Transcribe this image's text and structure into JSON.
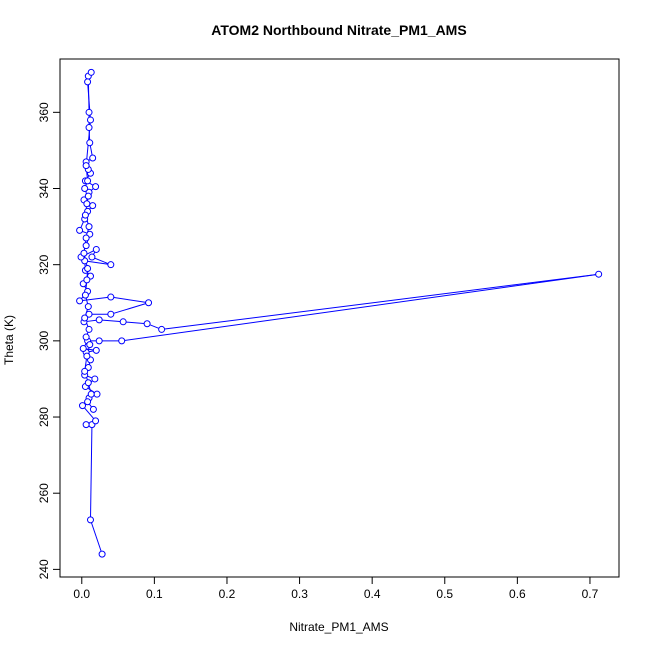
{
  "chart_data": {
    "type": "line",
    "title": "ATOM2 Northbound Nitrate_PM1_AMS",
    "xlabel": "Nitrate_PM1_AMS",
    "ylabel": "Theta (K)",
    "xlim": [
      -0.03,
      0.74
    ],
    "ylim": [
      238,
      374
    ],
    "x_ticks": [
      0.0,
      0.1,
      0.2,
      0.3,
      0.4,
      0.5,
      0.6,
      0.7
    ],
    "x_tick_labels": [
      "0.0",
      "0.1",
      "0.2",
      "0.3",
      "0.4",
      "0.5",
      "0.6",
      "0.7"
    ],
    "y_ticks": [
      240,
      260,
      280,
      300,
      320,
      340,
      360
    ],
    "y_tick_labels": [
      "240",
      "260",
      "280",
      "300",
      "320",
      "340",
      "360"
    ],
    "grid": false,
    "series": [
      {
        "color": "#0000ff",
        "marker": "open-circle",
        "points": [
          [
            0.028,
            244
          ],
          [
            0.012,
            253
          ],
          [
            0.014,
            278
          ],
          [
            0.006,
            278
          ],
          [
            0.019,
            279
          ],
          [
            0.001,
            283
          ],
          [
            0.01,
            285
          ],
          [
            0.021,
            286
          ],
          [
            0.005,
            288
          ],
          [
            0.018,
            290
          ],
          [
            0.004,
            291
          ],
          [
            0.009,
            293
          ],
          [
            0.012,
            295
          ],
          [
            0.006,
            297
          ],
          [
            0.02,
            297.5
          ],
          [
            0.002,
            298
          ],
          [
            0.008,
            300
          ],
          [
            0.024,
            300
          ],
          [
            0.055,
            300
          ],
          [
            0.712,
            317.5
          ],
          [
            0.11,
            303
          ],
          [
            0.09,
            304.5
          ],
          [
            0.057,
            305
          ],
          [
            0.024,
            305.5
          ],
          [
            0.003,
            305
          ],
          [
            0.01,
            307
          ],
          [
            0.04,
            307
          ],
          [
            0.092,
            310
          ],
          [
            0.04,
            311.5
          ],
          [
            -0.003,
            310.5
          ],
          [
            0.008,
            313
          ],
          [
            0.002,
            315
          ],
          [
            0.012,
            317
          ],
          [
            0.005,
            318.5
          ],
          [
            0.004,
            321
          ],
          [
            0.04,
            320
          ],
          [
            0.014,
            322
          ],
          [
            0.02,
            324
          ],
          [
            -0.001,
            322
          ],
          [
            0.006,
            325
          ],
          [
            0.011,
            328
          ],
          [
            -0.003,
            329
          ],
          [
            0.004,
            332
          ],
          [
            0.008,
            334
          ],
          [
            0.015,
            335.5
          ],
          [
            0.003,
            337
          ],
          [
            0.01,
            339
          ],
          [
            0.019,
            340.5
          ],
          [
            0.005,
            342
          ],
          [
            0.012,
            344
          ],
          [
            0.009,
            345
          ],
          [
            0.006,
            347
          ],
          [
            0.015,
            348
          ],
          [
            0.011,
            352
          ],
          [
            0.01,
            356
          ],
          [
            0.01,
            360
          ],
          [
            0.009,
            369.5
          ],
          [
            0.013,
            370.5
          ],
          [
            0.008,
            368
          ],
          [
            0.012,
            358
          ],
          [
            0.006,
            346
          ],
          [
            0.008,
            342
          ],
          [
            0.004,
            340
          ],
          [
            0.009,
            338
          ],
          [
            0.007,
            336
          ],
          [
            0.005,
            333
          ],
          [
            0.01,
            330
          ],
          [
            0.006,
            327
          ],
          [
            0.003,
            323
          ],
          [
            0.008,
            319
          ],
          [
            0.007,
            316
          ],
          [
            0.005,
            312
          ],
          [
            0.009,
            309
          ],
          [
            0.004,
            306
          ],
          [
            0.01,
            303
          ],
          [
            0.006,
            301
          ],
          [
            0.011,
            299
          ],
          [
            0.007,
            296
          ],
          [
            0.004,
            292
          ],
          [
            0.009,
            289
          ],
          [
            0.013,
            286
          ],
          [
            0.008,
            284
          ],
          [
            0.016,
            282
          ]
        ]
      }
    ]
  }
}
